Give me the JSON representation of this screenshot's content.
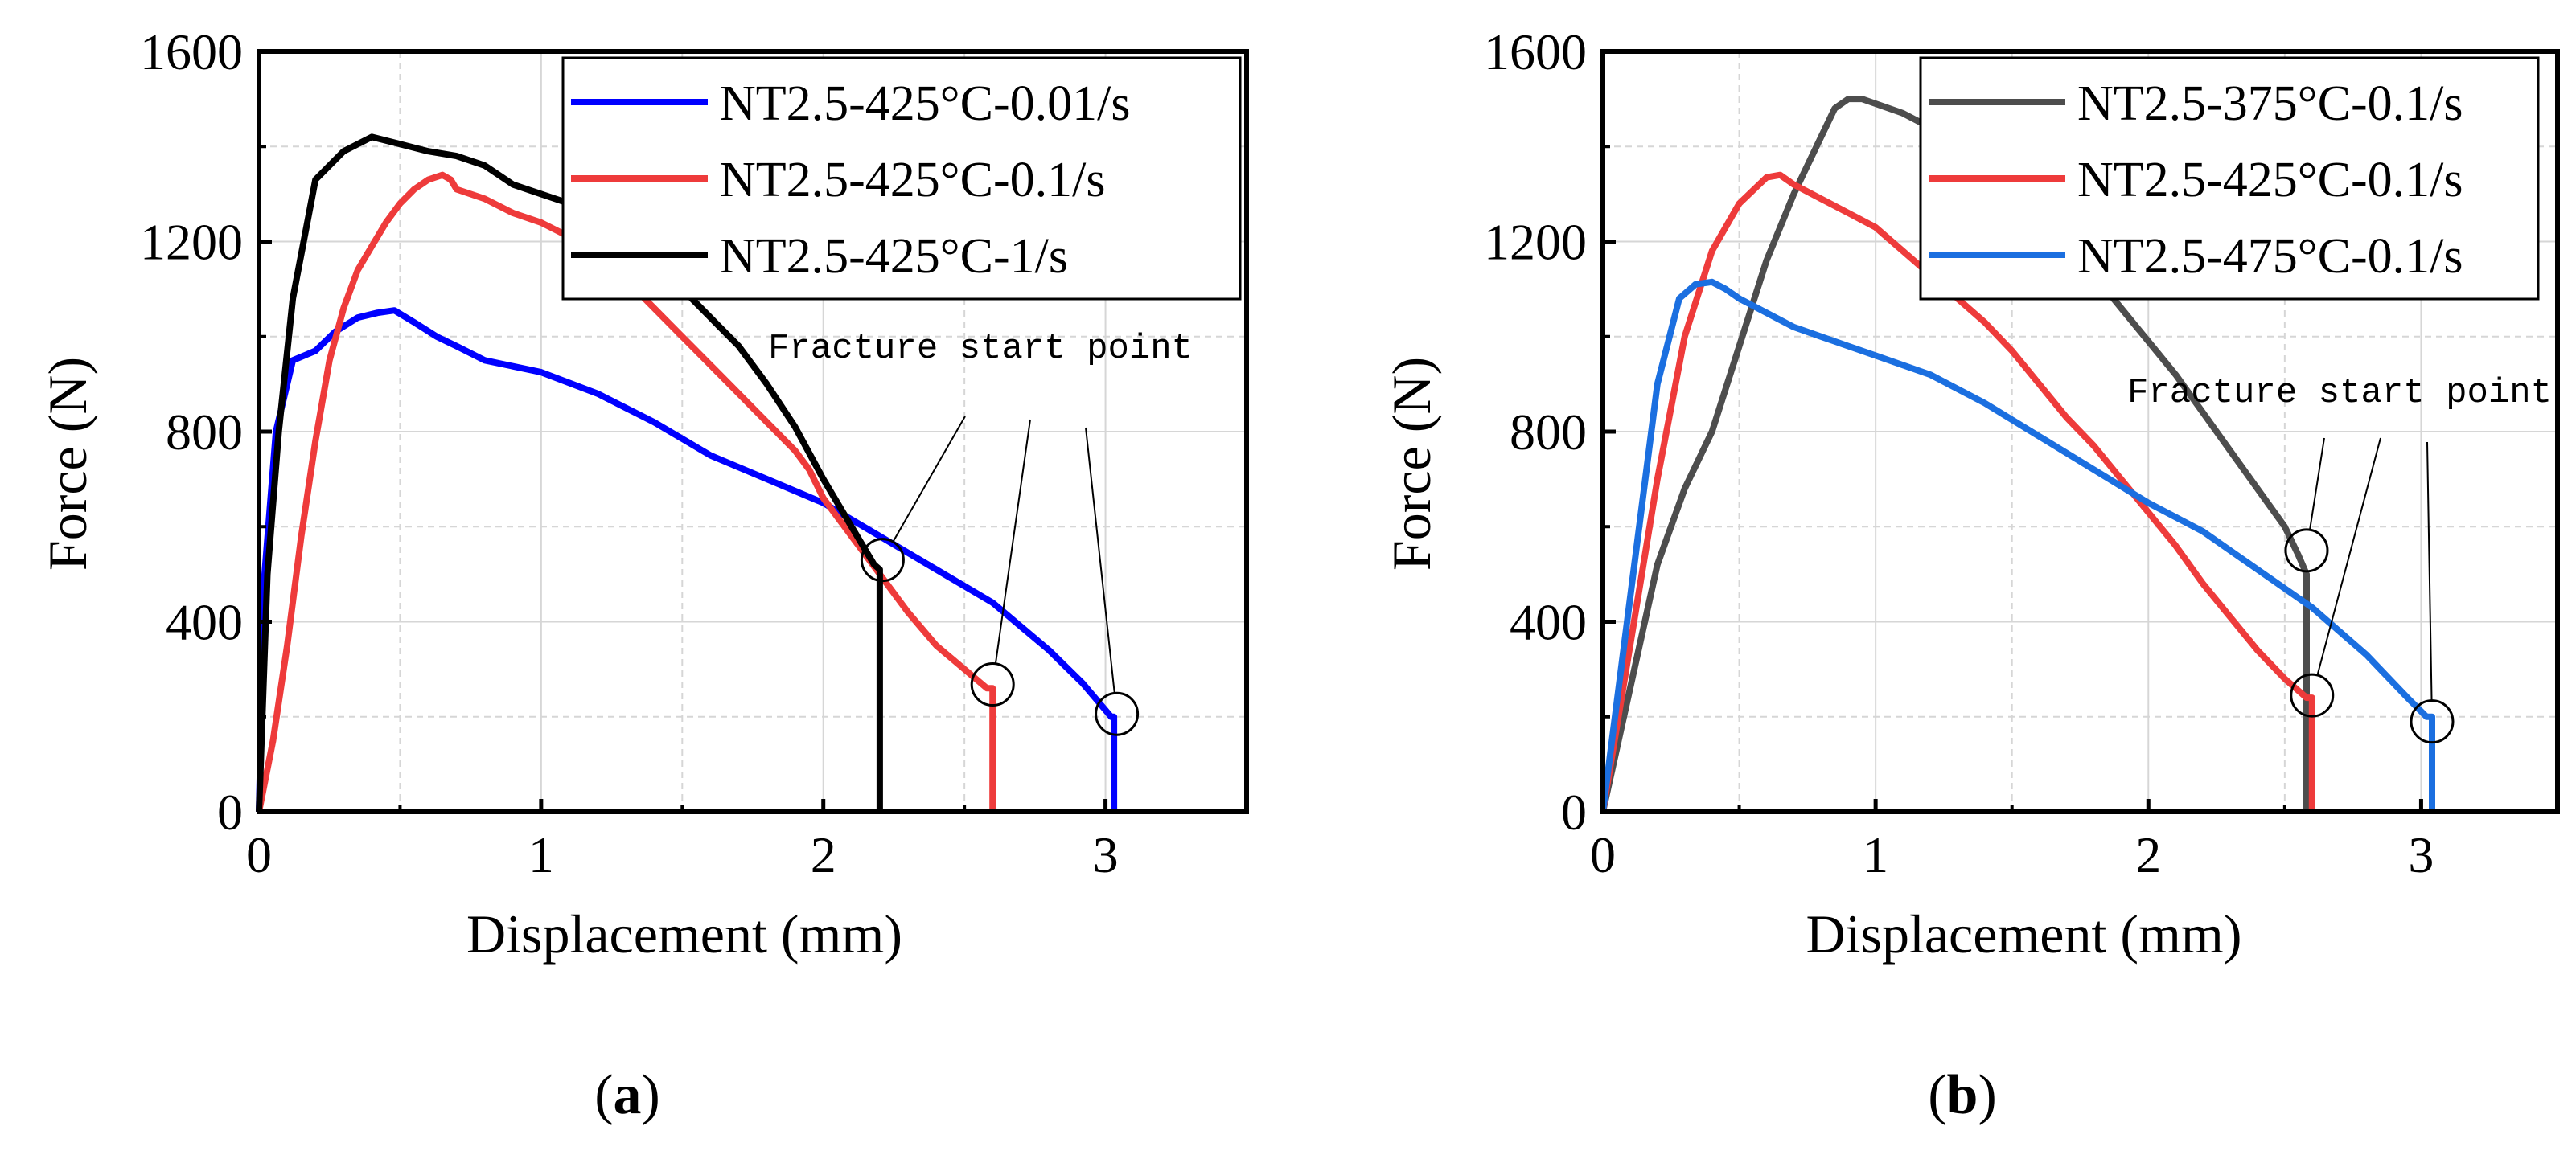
{
  "chart_data": [
    {
      "panel": "a",
      "caption_label": "a",
      "type": "line",
      "xlabel": "Displacement  (mm)",
      "ylabel": "Force (N)",
      "xlim": [
        0,
        3.5
      ],
      "ylim": [
        0,
        1600
      ],
      "xticks": [
        0,
        1,
        2,
        3
      ],
      "yticks": [
        0,
        400,
        800,
        1200,
        1600
      ],
      "grid": true,
      "legend_position": "top-right",
      "annotation": "Fracture start point",
      "series": [
        {
          "name": "NT2.5-425°C-0.01/s",
          "color": "#0000ff",
          "x": [
            0,
            0.02,
            0.06,
            0.12,
            0.2,
            0.27,
            0.35,
            0.42,
            0.48,
            0.55,
            0.63,
            0.7,
            0.8,
            1.0,
            1.2,
            1.4,
            1.6,
            1.8,
            2.0,
            2.2,
            2.4,
            2.6,
            2.8,
            2.92,
            3.02,
            3.03,
            3.03
          ],
          "y": [
            0,
            500,
            800,
            950,
            970,
            1010,
            1040,
            1050,
            1055,
            1030,
            1000,
            980,
            950,
            925,
            880,
            820,
            750,
            700,
            650,
            580,
            510,
            440,
            340,
            270,
            200,
            200,
            0
          ]
        },
        {
          "name": "NT2.5-425°C-0.1/s",
          "color": "#ee3b3b",
          "x": [
            0,
            0.05,
            0.1,
            0.15,
            0.2,
            0.25,
            0.3,
            0.35,
            0.4,
            0.45,
            0.5,
            0.55,
            0.6,
            0.65,
            0.68,
            0.7,
            0.8,
            0.9,
            1.0,
            1.1,
            1.2,
            1.3,
            1.4,
            1.5,
            1.6,
            1.7,
            1.8,
            1.9,
            1.95,
            2.0,
            2.1,
            2.2,
            2.3,
            2.4,
            2.5,
            2.58,
            2.6,
            2.6
          ],
          "y": [
            0,
            150,
            350,
            580,
            780,
            950,
            1060,
            1140,
            1190,
            1240,
            1280,
            1310,
            1330,
            1340,
            1330,
            1310,
            1290,
            1260,
            1240,
            1210,
            1170,
            1120,
            1060,
            1000,
            940,
            880,
            820,
            760,
            720,
            660,
            580,
            500,
            420,
            350,
            300,
            260,
            260,
            0
          ]
        },
        {
          "name": "NT2.5-425°C-1/s",
          "color": "#000000",
          "x": [
            0,
            0.03,
            0.07,
            0.12,
            0.2,
            0.3,
            0.4,
            0.5,
            0.6,
            0.7,
            0.8,
            0.9,
            1.0,
            1.1,
            1.2,
            1.3,
            1.4,
            1.5,
            1.6,
            1.7,
            1.8,
            1.9,
            2.0,
            2.1,
            2.18,
            2.2,
            2.2
          ],
          "y": [
            0,
            500,
            800,
            1080,
            1330,
            1390,
            1420,
            1405,
            1390,
            1380,
            1360,
            1320,
            1300,
            1280,
            1260,
            1220,
            1160,
            1100,
            1040,
            980,
            900,
            810,
            700,
            600,
            520,
            510,
            0
          ]
        }
      ]
    },
    {
      "panel": "b",
      "caption_label": "b",
      "type": "line",
      "xlabel": "Displacement (mm)",
      "ylabel": "Force (N)",
      "xlim": [
        0,
        3.5
      ],
      "ylim": [
        0,
        1600
      ],
      "xticks": [
        0,
        1,
        2,
        3
      ],
      "yticks": [
        0,
        400,
        800,
        1200,
        1600
      ],
      "grid": true,
      "legend_position": "top-right",
      "annotation": "Fracture start point",
      "series": [
        {
          "name": "NT2.5-375°C-0.1/s",
          "color": "#4d4d4d",
          "x": [
            0,
            0.1,
            0.2,
            0.3,
            0.4,
            0.5,
            0.6,
            0.7,
            0.8,
            0.85,
            0.9,
            0.95,
            1.0,
            1.1,
            1.2,
            1.3,
            1.4,
            1.5,
            1.6,
            1.7,
            1.8,
            1.9,
            2.0,
            2.1,
            2.2,
            2.3,
            2.4,
            2.5,
            2.55,
            2.58,
            2.58
          ],
          "y": [
            0,
            260,
            520,
            680,
            800,
            980,
            1160,
            1300,
            1420,
            1480,
            1500,
            1500,
            1490,
            1470,
            1440,
            1400,
            1350,
            1300,
            1250,
            1200,
            1130,
            1060,
            990,
            920,
            840,
            760,
            680,
            600,
            540,
            500,
            0
          ]
        },
        {
          "name": "NT2.5-425°C-0.1/s",
          "color": "#ee3b3b",
          "x": [
            0,
            0.1,
            0.2,
            0.3,
            0.4,
            0.5,
            0.6,
            0.65,
            0.7,
            0.8,
            0.9,
            1.0,
            1.1,
            1.2,
            1.3,
            1.4,
            1.5,
            1.6,
            1.7,
            1.8,
            1.9,
            2.0,
            2.1,
            2.2,
            2.3,
            2.4,
            2.5,
            2.58,
            2.6,
            2.6
          ],
          "y": [
            0,
            350,
            700,
            1000,
            1180,
            1280,
            1335,
            1340,
            1320,
            1290,
            1260,
            1230,
            1180,
            1130,
            1080,
            1030,
            970,
            900,
            830,
            770,
            700,
            630,
            560,
            480,
            410,
            340,
            280,
            240,
            240,
            0
          ]
        },
        {
          "name": "NT2.5-475°C-0.1/s",
          "color": "#1b6fe0",
          "x": [
            0,
            0.1,
            0.2,
            0.28,
            0.34,
            0.4,
            0.45,
            0.5,
            0.6,
            0.7,
            0.8,
            0.9,
            1.0,
            1.2,
            1.4,
            1.6,
            1.8,
            2.0,
            2.2,
            2.4,
            2.6,
            2.8,
            2.95,
            3.02,
            3.04,
            3.04
          ],
          "y": [
            0,
            450,
            900,
            1080,
            1110,
            1115,
            1100,
            1080,
            1050,
            1020,
            1000,
            980,
            960,
            920,
            860,
            790,
            720,
            650,
            590,
            510,
            430,
            330,
            240,
            200,
            200,
            0
          ]
        }
      ]
    }
  ]
}
